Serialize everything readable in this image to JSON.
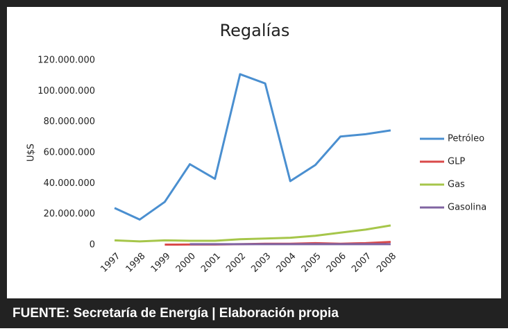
{
  "chart_data": {
    "type": "line",
    "title": "Regalías",
    "y_label": "U$S",
    "categories": [
      "1997",
      "1998",
      "1999",
      "2000",
      "2001",
      "2002",
      "2003",
      "2004",
      "2005",
      "2006",
      "2007",
      "2008"
    ],
    "series": [
      {
        "name": "Petróleo",
        "color": "#4a8fd0",
        "values": [
          24000000,
          16500000,
          28000000,
          52500000,
          43000000,
          111000000,
          105000000,
          41500000,
          52000000,
          70500000,
          72000000,
          74500000
        ]
      },
      {
        "name": "GLP",
        "color": "#d94a4a",
        "values": [
          null,
          null,
          200000,
          300000,
          300000,
          500000,
          800000,
          800000,
          1200000,
          800000,
          1200000,
          2000000
        ]
      },
      {
        "name": "Gas",
        "color": "#a6c64a",
        "values": [
          3000000,
          2300000,
          3000000,
          2700000,
          2700000,
          3700000,
          4200000,
          4700000,
          6000000,
          8000000,
          10000000,
          12700000
        ]
      },
      {
        "name": "Gasolina",
        "color": "#8064a2",
        "values": [
          null,
          null,
          null,
          500000,
          500000,
          500000,
          500000,
          500000,
          500000,
          500000,
          500000,
          500000
        ]
      }
    ],
    "ylim": [
      0,
      120000000
    ],
    "yticks": [
      0,
      {
        "value": 20000000,
        "label": "20.000.000"
      },
      {
        "value": 40000000,
        "label": "40.000.000"
      },
      {
        "value": 60000000,
        "label": "60.000.000"
      },
      {
        "value": 80000000,
        "label": "80.000.000"
      },
      {
        "value": 100000000,
        "label": "100.000.000"
      },
      {
        "value": 120000000,
        "label": "120.000.000"
      }
    ],
    "grid": false,
    "legend": "right",
    "footer": "FUENTE: Secretaría de Energía | Elaboración propia"
  }
}
